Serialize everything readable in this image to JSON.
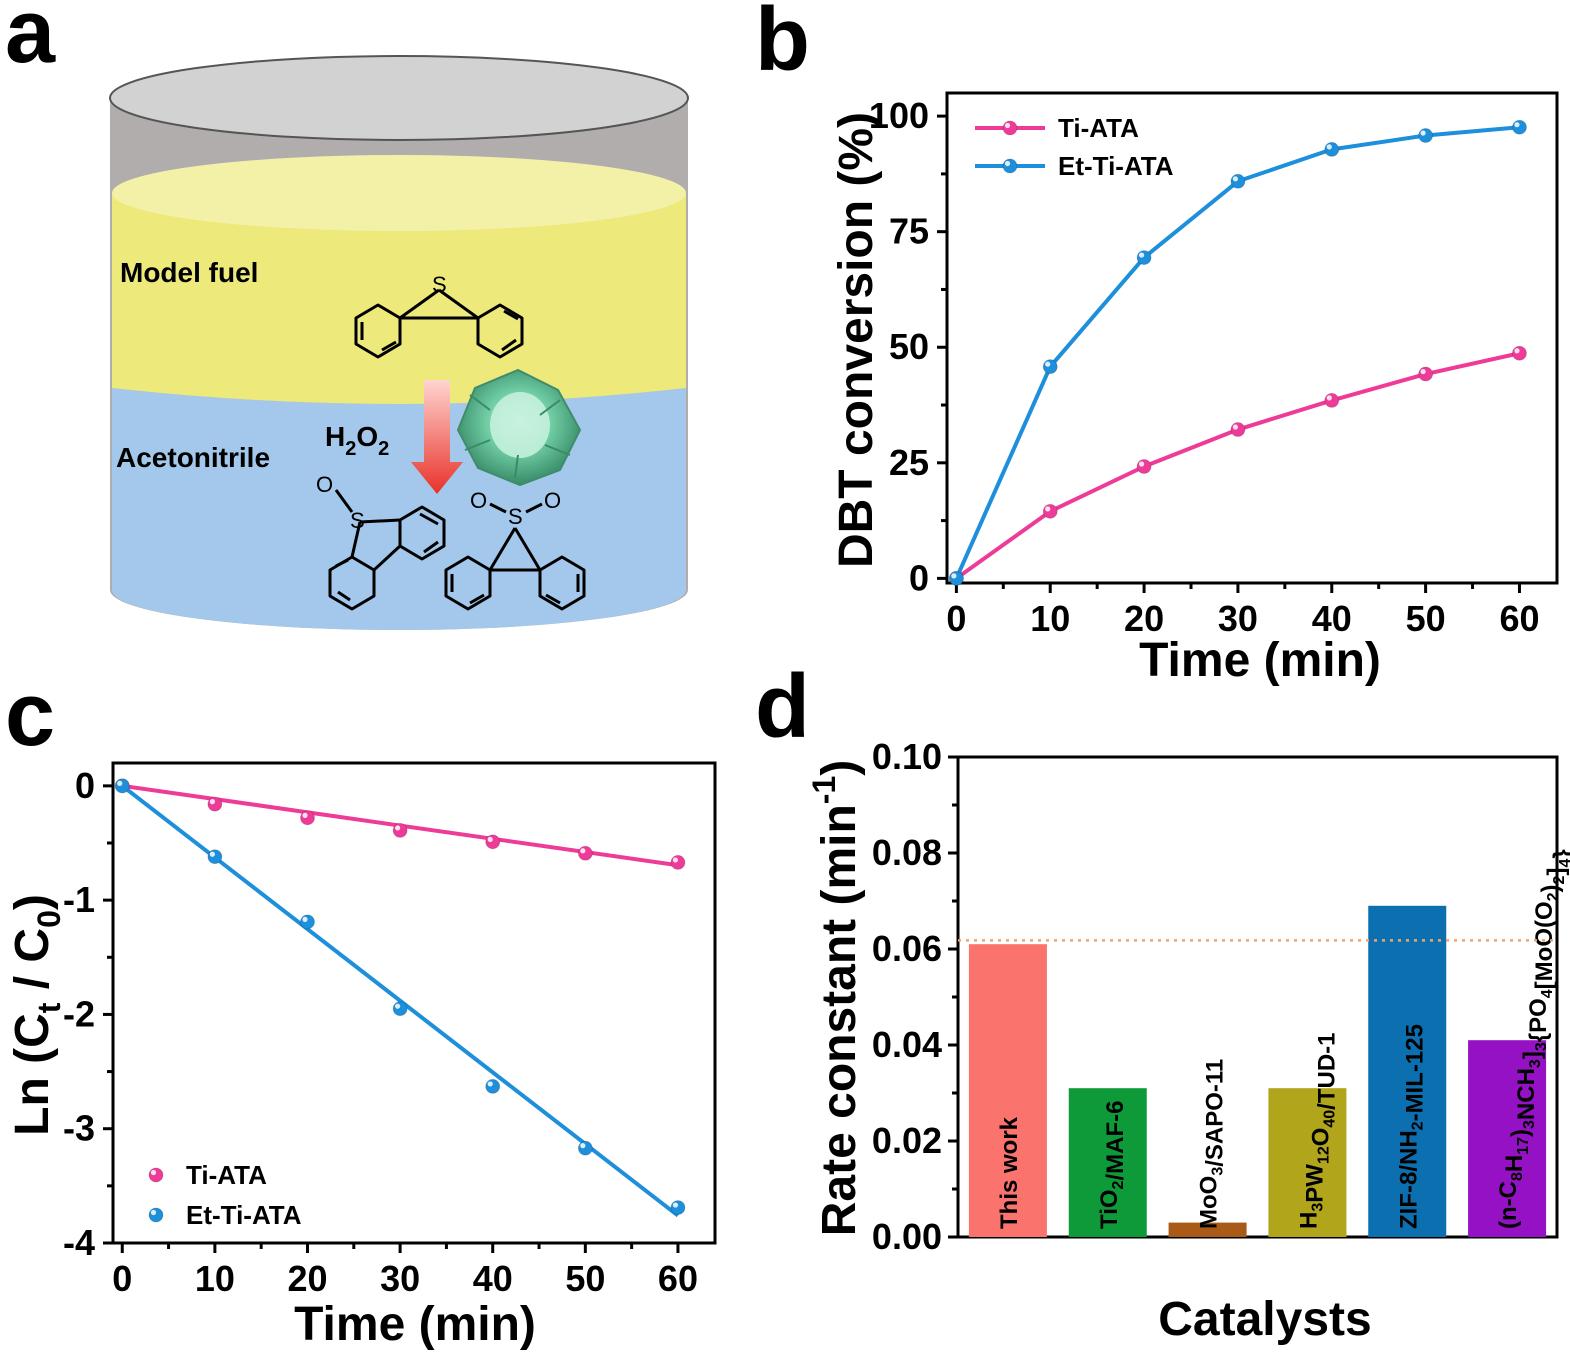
{
  "panels": {
    "a": "a",
    "b": "b",
    "c": "c",
    "d": "d"
  },
  "diagram": {
    "model_fuel_label": "Model fuel",
    "solvent_label": "Acetonitrile",
    "oxidant_label_main": "H",
    "oxidant_sub1": "2",
    "oxidant_mid": "O",
    "oxidant_sub2": "2",
    "sulfur": "S",
    "oxygen": "O",
    "colors": {
      "lid": "#d2d2d2",
      "wall": "#b1adad",
      "fuel": "#ede97a",
      "fuel_top": "#f3f1a8",
      "solvent": "#a3c8eb",
      "arrow": "#e8312a",
      "catalyst": "#5fbf98"
    }
  },
  "chart_data": [
    {
      "panel": "b",
      "type": "line",
      "xlabel": "Time (min)",
      "ylabel": "DBT conversion (%)",
      "xlim": [
        -1,
        64
      ],
      "ylim": [
        -1,
        105
      ],
      "xticks": [
        0,
        10,
        20,
        30,
        40,
        50,
        60
      ],
      "yticks": [
        0,
        25,
        50,
        75,
        100
      ],
      "legend_position": "top-left",
      "series": [
        {
          "name": "Ti-ATA",
          "color": "#ee3b97",
          "x": [
            0,
            10,
            20,
            30,
            40,
            50,
            60
          ],
          "y": [
            0,
            14.5,
            24.2,
            32.2,
            38.5,
            44.2,
            48.7
          ]
        },
        {
          "name": "Et-Ti-ATA",
          "color": "#1d8fdb",
          "x": [
            0,
            10,
            20,
            30,
            40,
            50,
            60
          ],
          "y": [
            0,
            45.8,
            69.4,
            85.9,
            92.8,
            95.8,
            97.6
          ]
        }
      ]
    },
    {
      "panel": "c",
      "type": "scatter",
      "xlabel": "Time (min)",
      "ylabel_parts": {
        "pre": "Ln (C",
        "sub1": "t",
        "mid": " / C",
        "sub2": "0",
        "post": ")"
      },
      "xlim": [
        -1,
        64
      ],
      "ylim": [
        -4.0,
        0.2
      ],
      "xticks": [
        0,
        10,
        20,
        30,
        40,
        50,
        60
      ],
      "yticks": [
        0,
        -1,
        -2,
        -3,
        -4
      ],
      "legend_position": "bottom-left",
      "series": [
        {
          "name": "Ti-ATA",
          "color": "#ee3b97",
          "x": [
            0,
            10,
            20,
            30,
            40,
            50,
            60
          ],
          "y": [
            0,
            -0.16,
            -0.28,
            -0.39,
            -0.49,
            -0.59,
            -0.67
          ],
          "fit": [
            [
              0,
              0
            ],
            [
              60,
              -0.695
            ]
          ]
        },
        {
          "name": "Et-Ti-ATA",
          "color": "#1d8fdb",
          "x": [
            0,
            10,
            20,
            30,
            40,
            50,
            60
          ],
          "y": [
            0,
            -0.62,
            -1.19,
            -1.95,
            -2.63,
            -3.17,
            -3.69
          ],
          "fit": [
            [
              0,
              0
            ],
            [
              60,
              -3.76
            ]
          ]
        }
      ]
    },
    {
      "panel": "d",
      "type": "bar",
      "xlabel": "Catalysts",
      "ylabel_parts": {
        "pre": "Rate constant (min",
        "sup": "-1",
        "post": ")"
      },
      "ylim": [
        0,
        0.1
      ],
      "yticks": [
        "0.00",
        "0.02",
        "0.04",
        "0.06",
        "0.08",
        "0.10"
      ],
      "reference_line": 0.0618,
      "reference_color": "#f2a36b",
      "bars": [
        {
          "value": 0.061,
          "color": "#fa736c",
          "label": [
            {
              "t": "This work"
            }
          ]
        },
        {
          "value": 0.031,
          "color": "#0f9a3a",
          "label": [
            {
              "t": "TiO"
            },
            {
              "t": "2",
              "sub": true
            },
            {
              "t": "/MAF-6"
            }
          ]
        },
        {
          "value": 0.003,
          "color": "#a95a16",
          "label": [
            {
              "t": "MoO"
            },
            {
              "t": "3",
              "sub": true
            },
            {
              "t": "/SAPO-11"
            }
          ]
        },
        {
          "value": 0.031,
          "color": "#b1a51b",
          "label": [
            {
              "t": "H"
            },
            {
              "t": "3",
              "sub": true
            },
            {
              "t": "PW"
            },
            {
              "t": "12",
              "sub": true
            },
            {
              "t": "O"
            },
            {
              "t": "40",
              "sub": true
            },
            {
              "t": "/TUD-1"
            }
          ]
        },
        {
          "value": 0.069,
          "color": "#0c6fb0",
          "label": [
            {
              "t": "ZIF-8/NH"
            },
            {
              "t": "2",
              "sub": true
            },
            {
              "t": "-MIL-125"
            }
          ]
        },
        {
          "value": 0.041,
          "color": "#9411c4",
          "label": [
            {
              "t": "(n-C"
            },
            {
              "t": "8",
              "sub": true
            },
            {
              "t": "H"
            },
            {
              "t": "17",
              "sub": true
            },
            {
              "t": ")"
            },
            {
              "t": "3",
              "sub": true
            },
            {
              "t": "NCH"
            },
            {
              "t": "3",
              "sub": true
            },
            {
              "t": "]"
            },
            {
              "t": "3",
              "sub": true
            },
            {
              "t": "{PO"
            },
            {
              "t": "4",
              "sub": true
            },
            {
              "t": "[MoO(O"
            },
            {
              "t": "2",
              "sub": true
            },
            {
              "t": ")"
            },
            {
              "t": "2",
              "sub": true
            },
            {
              "t": "]"
            },
            {
              "t": "4",
              "sub": true
            },
            {
              "t": "}"
            }
          ]
        }
      ]
    }
  ]
}
